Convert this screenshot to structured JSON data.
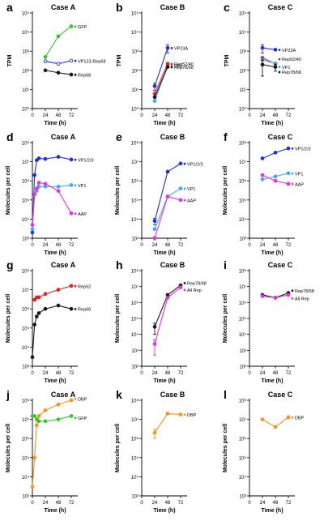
{
  "colors": {
    "black": "#1a1a1a",
    "blue": "#1f2fe0",
    "lightblue": "#3fa9f5",
    "red": "#e8201c",
    "magenta": "#e62ee6",
    "green": "#35c62c",
    "orange": "#f7931e",
    "darkred": "#8b1a1a"
  },
  "chart_data": [
    {
      "panel": "a",
      "title": "Case A",
      "type": "line",
      "xlabel": "Time (h)",
      "ylabel": "TPM",
      "xlim": [
        0,
        84
      ],
      "xticks": [
        0,
        24,
        48,
        72
      ],
      "ylog": true,
      "ylim_exp": [
        0,
        5
      ],
      "ytick_labels": [
        "10⁰",
        "10¹",
        "10²",
        "10³",
        "10⁴",
        "10⁵"
      ],
      "series": [
        {
          "name": "GFP",
          "color": "green",
          "open": false,
          "x": [
            24,
            48,
            72
          ],
          "y": [
            500,
            6000,
            20000
          ]
        },
        {
          "name": "VP123-Rep68",
          "color": "blue",
          "open": true,
          "x": [
            24,
            48,
            72
          ],
          "y": [
            300,
            220,
            320
          ]
        },
        {
          "name": "Rep68",
          "color": "black",
          "open": false,
          "x": [
            24,
            48,
            72
          ],
          "y": [
            100,
            75,
            60
          ]
        }
      ]
    },
    {
      "panel": "b",
      "title": "Case B",
      "type": "line",
      "xlabel": "Time (h)",
      "ylabel": "TPM",
      "xlim": [
        0,
        84
      ],
      "xticks": [
        0,
        24,
        48,
        72
      ],
      "ylog": true,
      "ylim_exp": [
        0,
        5
      ],
      "ytick_labels": [
        "10⁰",
        "10¹",
        "10²",
        "10³",
        "10⁴",
        "10⁵"
      ],
      "series": [
        {
          "name": "VP23A",
          "color": "blue",
          "x": [
            24,
            48
          ],
          "y": [
            15,
            1500
          ],
          "err": [
            6,
            700
          ]
        },
        {
          "name": "VP1",
          "color": "lightblue",
          "x": [
            24,
            48
          ],
          "y": [
            2.5,
            180
          ]
        },
        {
          "name": "Rep52/40",
          "color": "red",
          "x": [
            24,
            48
          ],
          "y": [
            6,
            220
          ]
        },
        {
          "name": "Rep78/68",
          "color": "black",
          "x": [
            24,
            48
          ],
          "y": [
            4,
            150
          ]
        }
      ]
    },
    {
      "panel": "c",
      "title": "Case C",
      "type": "line",
      "xlabel": "Time (h)",
      "ylabel": "TPM",
      "xlim": [
        0,
        84
      ],
      "xticks": [
        0,
        24,
        48,
        72
      ],
      "ylog": true,
      "ylim_exp": [
        0,
        5
      ],
      "ytick_labels": [
        "10⁰",
        "10¹",
        "10²",
        "10³",
        "10⁴",
        "10⁵"
      ],
      "series": [
        {
          "name": "VP23A",
          "color": "blue",
          "x": [
            24,
            48
          ],
          "y": [
            1500,
            1200
          ],
          "err": [
            700,
            0
          ]
        },
        {
          "name": "Rep52/40",
          "color": "red",
          "x": [
            24,
            48
          ],
          "y": [
            450,
            220
          ]
        },
        {
          "name": "VP1",
          "color": "lightblue",
          "x": [
            24,
            48
          ],
          "y": [
            350,
            230
          ]
        },
        {
          "name": "Rep78/68",
          "color": "black",
          "x": [
            24,
            48
          ],
          "y": [
            200,
            150
          ],
          "err": [
            150,
            60
          ]
        }
      ]
    },
    {
      "panel": "d",
      "title": "Case A",
      "type": "line",
      "xlabel": "Time (h)",
      "ylabel": "Molecules per cell",
      "xlim": [
        0,
        84
      ],
      "xticks": [
        0,
        24,
        48,
        72
      ],
      "ylog": true,
      "ylim_exp": [
        3,
        8
      ],
      "ytick_labels": [
        "10³",
        "10⁴",
        "10⁵",
        "10⁶",
        "10⁷",
        "10⁸"
      ],
      "series": [
        {
          "name": "VP1/2/3",
          "color": "blue",
          "x": [
            0,
            4,
            8,
            12,
            24,
            48,
            72
          ],
          "y": [
            2000,
            2000000,
            12000000,
            15000000,
            14000000,
            18000000,
            13000000
          ]
        },
        {
          "name": "VP1",
          "color": "lightblue",
          "x": [
            0,
            4,
            8,
            12,
            24,
            48,
            72
          ],
          "y": [
            3000,
            200000,
            300000,
            500000,
            500000,
            500000,
            600000
          ]
        },
        {
          "name": "AAP",
          "color": "magenta",
          "x": [
            0,
            4,
            8,
            12,
            24,
            48,
            72
          ],
          "y": [
            5000,
            200000,
            400000,
            800000,
            700000,
            300000,
            20000
          ]
        }
      ]
    },
    {
      "panel": "e",
      "title": "Case B",
      "type": "line",
      "xlabel": "Time (h)",
      "ylabel": "Molecules per cell",
      "xlim": [
        0,
        84
      ],
      "xticks": [
        0,
        24,
        48,
        72
      ],
      "ylog": true,
      "ylim_exp": [
        3,
        8
      ],
      "ytick_labels": [
        "10³",
        "10⁴",
        "10⁵",
        "10⁶",
        "10⁷",
        "10⁸"
      ],
      "series": [
        {
          "name": "VP1/2/3",
          "color": "blue",
          "x": [
            24,
            48,
            72
          ],
          "y": [
            8000,
            3000000,
            8000000
          ],
          "err": [
            3000,
            0,
            0
          ]
        },
        {
          "name": "VP1",
          "color": "lightblue",
          "x": [
            24,
            48,
            72
          ],
          "y": [
            3000,
            150000,
            400000
          ]
        },
        {
          "name": "AAP",
          "color": "magenta",
          "x": [
            24,
            48,
            72
          ],
          "y": [
            800,
            150000,
            100000
          ],
          "err": [
            400,
            0,
            0
          ]
        }
      ]
    },
    {
      "panel": "f",
      "title": "Case C",
      "type": "line",
      "xlabel": "Time (h)",
      "ylabel": "Molecules per cell",
      "xlim": [
        0,
        84
      ],
      "xticks": [
        0,
        24,
        48,
        72
      ],
      "ylog": true,
      "ylim_exp": [
        3,
        8
      ],
      "ytick_labels": [
        "10³",
        "10⁴",
        "10⁵",
        "10⁶",
        "10⁷",
        "10⁸"
      ],
      "series": [
        {
          "name": "VP1/2/3",
          "color": "blue",
          "x": [
            24,
            48,
            72
          ],
          "y": [
            15000000,
            30000000,
            50000000
          ]
        },
        {
          "name": "VP1",
          "color": "lightblue",
          "x": [
            24,
            48,
            72
          ],
          "y": [
            1200000,
            1700000,
            2500000
          ]
        },
        {
          "name": "AAP",
          "color": "magenta",
          "x": [
            24,
            48,
            72
          ],
          "y": [
            2000000,
            1000000,
            700000
          ]
        }
      ]
    },
    {
      "panel": "g",
      "title": "Case A",
      "type": "line",
      "xlabel": "Time (h)",
      "ylabel": "Molecules per cell",
      "xlim": [
        0,
        84
      ],
      "xticks": [
        0,
        24,
        48,
        72
      ],
      "ylog": true,
      "ylim_exp": [
        3,
        8
      ],
      "ytick_labels": [
        "10³",
        "10⁴",
        "10⁵",
        "10⁶",
        "10⁷",
        "10⁸"
      ],
      "series": [
        {
          "name": "Rep52",
          "color": "red",
          "x": [
            4,
            8,
            12,
            24,
            48,
            72
          ],
          "y": [
            3000000,
            4000000,
            4000000,
            6000000,
            10000000,
            16000000
          ]
        },
        {
          "name": "Rep68",
          "color": "black",
          "x": [
            0,
            4,
            8,
            12,
            24,
            48,
            72
          ],
          "y": [
            3000,
            150000,
            400000,
            600000,
            1000000,
            1500000,
            1000000
          ]
        }
      ]
    },
    {
      "panel": "h",
      "title": "Case B",
      "type": "line",
      "xlabel": "Time (h)",
      "ylabel": "Molecules per cell",
      "xlim": [
        0,
        84
      ],
      "xticks": [
        0,
        24,
        48,
        72
      ],
      "ylog": true,
      "ylim_exp": [
        2,
        8
      ],
      "ytick_labels": [
        "10²",
        "10³",
        "10⁴",
        "10⁵",
        "10⁶",
        "10⁷",
        "10⁸"
      ],
      "series": [
        {
          "name": "Rep78/68",
          "color": "black",
          "x": [
            24,
            48,
            72
          ],
          "y": [
            30000,
            3000000,
            12000000
          ],
          "err": [
            20000,
            0,
            0
          ]
        },
        {
          "name": "All Rep",
          "color": "magenta",
          "x": [
            24,
            48,
            72
          ],
          "y": [
            2500,
            2000000,
            9000000
          ],
          "err": [
            2000,
            0,
            0
          ]
        }
      ]
    },
    {
      "panel": "i",
      "title": "Case C",
      "type": "line",
      "xlabel": "Time (h)",
      "ylabel": "Molecules per cell",
      "xlim": [
        0,
        84
      ],
      "xticks": [
        0,
        24,
        48,
        72
      ],
      "ylog": true,
      "ylim_exp": [
        2,
        8
      ],
      "ytick_labels": [
        "10²",
        "10³",
        "10⁴",
        "10⁵",
        "10⁶",
        "10⁷",
        "10⁸"
      ],
      "series": [
        {
          "name": "Rep78/68",
          "color": "black",
          "x": [
            24,
            48,
            72
          ],
          "y": [
            3000000,
            2000000,
            4000000
          ]
        },
        {
          "name": "All Rep",
          "color": "magenta",
          "x": [
            24,
            48,
            72
          ],
          "y": [
            2500000,
            2000000,
            3000000
          ]
        }
      ]
    },
    {
      "panel": "j",
      "title": "Case A",
      "type": "line",
      "xlabel": "Time (h)",
      "ylabel": "Molecules per cell",
      "xlim": [
        0,
        84
      ],
      "xticks": [
        0,
        24,
        48,
        72
      ],
      "ylog": true,
      "ylim_exp": [
        3,
        8
      ],
      "ytick_labels": [
        "10³",
        "10⁴",
        "10⁵",
        "10⁶",
        "10⁷",
        "10⁸"
      ],
      "series": [
        {
          "name": "DBP",
          "color": "orange",
          "x": [
            0,
            4,
            8,
            12,
            24,
            48,
            72
          ],
          "y": [
            3000,
            100000,
            5000000,
            15000000,
            30000000,
            60000000,
            100000000
          ]
        },
        {
          "name": "GFP",
          "color": "green",
          "x": [
            0,
            4,
            8,
            12,
            24,
            48,
            72
          ],
          "y": [
            15000000,
            15000000,
            10000000,
            8000000,
            8000000,
            10000000,
            15000000
          ]
        }
      ]
    },
    {
      "panel": "k",
      "title": "Case B",
      "type": "line",
      "xlabel": "Time (h)",
      "ylabel": "Molecules per cell",
      "xlim": [
        0,
        84
      ],
      "xticks": [
        0,
        24,
        48,
        72
      ],
      "ylog": true,
      "ylim_exp": [
        3,
        8
      ],
      "ytick_labels": [
        "10³",
        "10⁴",
        "10⁵",
        "10⁶",
        "10⁷",
        "10⁸"
      ],
      "series": [
        {
          "name": "DBP",
          "color": "orange",
          "x": [
            24,
            48,
            72
          ],
          "y": [
            2000000,
            20000000,
            18000000
          ],
          "err": [
            1000000,
            0,
            0
          ]
        }
      ]
    },
    {
      "panel": "l",
      "title": "Case C",
      "type": "line",
      "xlabel": "Time (h)",
      "ylabel": "Molecules per cell",
      "xlim": [
        0,
        84
      ],
      "xticks": [
        0,
        24,
        48,
        72
      ],
      "ylog": true,
      "ylim_exp": [
        3,
        8
      ],
      "ytick_labels": [
        "10³",
        "10⁴",
        "10⁵",
        "10⁶",
        "10⁷",
        "10⁸"
      ],
      "series": [
        {
          "name": "DBP",
          "color": "orange",
          "x": [
            24,
            48,
            72
          ],
          "y": [
            10000000,
            4000000,
            13000000
          ]
        }
      ]
    }
  ]
}
